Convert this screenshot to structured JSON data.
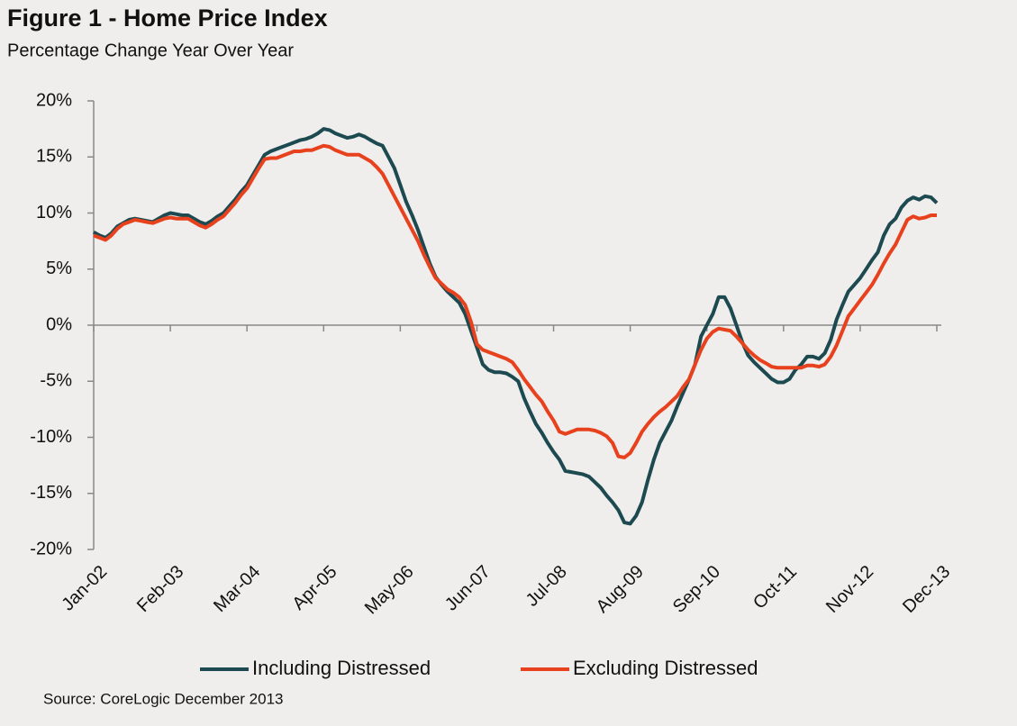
{
  "chart_data": {
    "type": "line",
    "title": "Figure 1 - Home Price Index",
    "subtitle": "Percentage Change Year Over Year",
    "source": "Source: CoreLogic  December 2013",
    "categories": [
      "Jan-02",
      null,
      null,
      null,
      null,
      null,
      null,
      null,
      null,
      null,
      null,
      null,
      null,
      "Feb-03",
      null,
      null,
      null,
      null,
      null,
      null,
      null,
      null,
      null,
      null,
      null,
      null,
      "Mar-04",
      null,
      null,
      null,
      null,
      null,
      null,
      null,
      null,
      null,
      null,
      null,
      null,
      "Apr-05",
      null,
      null,
      null,
      null,
      null,
      null,
      null,
      null,
      null,
      null,
      null,
      null,
      "May-06",
      null,
      null,
      null,
      null,
      null,
      null,
      null,
      null,
      null,
      null,
      null,
      null,
      "Jun-07",
      null,
      null,
      null,
      null,
      null,
      null,
      null,
      null,
      null,
      null,
      null,
      null,
      "Jul-08",
      null,
      null,
      null,
      null,
      null,
      null,
      null,
      null,
      null,
      null,
      null,
      null,
      "Aug-09",
      null,
      null,
      null,
      null,
      null,
      null,
      null,
      null,
      null,
      null,
      null,
      null,
      "Sep-10",
      null,
      null,
      null,
      null,
      null,
      null,
      null,
      null,
      null,
      null,
      null,
      null,
      "Oct-11",
      null,
      null,
      null,
      null,
      null,
      null,
      null,
      null,
      null,
      null,
      null,
      null,
      "Nov-12",
      null,
      null,
      null,
      null,
      null,
      null,
      null,
      null,
      null,
      null,
      null,
      null,
      "Dec-13"
    ],
    "series": [
      {
        "name": "Including Distressed",
        "color": "#1d4a50",
        "values": [
          8.3,
          8.0,
          7.8,
          8.2,
          8.8,
          9.1,
          9.4,
          9.5,
          9.4,
          9.3,
          9.2,
          9.5,
          9.8,
          10.0,
          9.9,
          9.8,
          9.8,
          9.5,
          9.2,
          9.0,
          9.3,
          9.7,
          10.0,
          10.6,
          11.2,
          11.9,
          12.5,
          13.4,
          14.3,
          15.2,
          15.5,
          15.7,
          15.9,
          16.1,
          16.3,
          16.5,
          16.6,
          16.8,
          17.1,
          17.5,
          17.4,
          17.1,
          16.9,
          16.7,
          16.8,
          17.0,
          16.8,
          16.5,
          16.2,
          16.0,
          15.0,
          14.0,
          12.5,
          11.0,
          9.8,
          8.5,
          7.0,
          5.5,
          4.3,
          3.6,
          3.0,
          2.5,
          2.0,
          1.0,
          -0.5,
          -2.0,
          -3.5,
          -4.0,
          -4.2,
          -4.2,
          -4.3,
          -4.6,
          -5.0,
          -6.5,
          -7.7,
          -8.8,
          -9.6,
          -10.5,
          -11.3,
          -12.0,
          -13.0,
          -13.1,
          -13.2,
          -13.3,
          -13.5,
          -14.0,
          -14.5,
          -15.2,
          -15.8,
          -16.5,
          -17.6,
          -17.7,
          -17.0,
          -15.8,
          -13.8,
          -12.0,
          -10.5,
          -9.5,
          -8.5,
          -7.2,
          -6.0,
          -4.8,
          -3.5,
          -1.0,
          0.0,
          1.0,
          2.5,
          2.5,
          1.5,
          0.0,
          -1.5,
          -2.7,
          -3.3,
          -3.8,
          -4.3,
          -4.8,
          -5.1,
          -5.1,
          -4.8,
          -4.0,
          -3.5,
          -2.8,
          -2.8,
          -3.0,
          -2.5,
          -1.3,
          0.5,
          1.8,
          3.0,
          3.6,
          4.2,
          5.0,
          5.8,
          6.5,
          8.0,
          9.0,
          9.5,
          10.5,
          11.1,
          11.4,
          11.2,
          11.5,
          11.4,
          10.9
        ]
      },
      {
        "name": "Excluding Distressed",
        "color": "#e8411d",
        "values": [
          8.0,
          7.8,
          7.6,
          8.0,
          8.6,
          9.0,
          9.2,
          9.4,
          9.3,
          9.2,
          9.1,
          9.3,
          9.5,
          9.6,
          9.5,
          9.5,
          9.5,
          9.2,
          8.9,
          8.7,
          9.0,
          9.4,
          9.7,
          10.3,
          10.9,
          11.6,
          12.2,
          13.1,
          14.0,
          14.8,
          14.9,
          14.9,
          15.1,
          15.3,
          15.5,
          15.5,
          15.6,
          15.6,
          15.8,
          16.0,
          15.9,
          15.6,
          15.4,
          15.2,
          15.2,
          15.2,
          14.9,
          14.6,
          14.1,
          13.5,
          12.5,
          11.5,
          10.5,
          9.5,
          8.5,
          7.5,
          6.3,
          5.2,
          4.2,
          3.7,
          3.2,
          2.9,
          2.5,
          1.8,
          0.3,
          -1.7,
          -2.2,
          -2.4,
          -2.6,
          -2.8,
          -3.0,
          -3.3,
          -4.0,
          -4.8,
          -5.5,
          -6.2,
          -6.8,
          -7.7,
          -8.5,
          -9.5,
          -9.7,
          -9.5,
          -9.3,
          -9.3,
          -9.3,
          -9.4,
          -9.6,
          -9.9,
          -10.5,
          -11.7,
          -11.8,
          -11.4,
          -10.5,
          -9.5,
          -8.8,
          -8.2,
          -7.7,
          -7.3,
          -6.8,
          -6.3,
          -5.5,
          -4.8,
          -3.5,
          -2.2,
          -1.2,
          -0.6,
          -0.3,
          -0.4,
          -0.5,
          -1.0,
          -1.6,
          -2.2,
          -2.7,
          -3.1,
          -3.4,
          -3.7,
          -3.8,
          -3.8,
          -3.8,
          -3.8,
          -3.8,
          -3.6,
          -3.6,
          -3.7,
          -3.5,
          -2.8,
          -1.8,
          -0.5,
          0.8,
          1.5,
          2.2,
          2.9,
          3.6,
          4.5,
          5.5,
          6.4,
          7.2,
          8.3,
          9.4,
          9.7,
          9.5,
          9.6,
          9.8,
          9.8
        ]
      }
    ],
    "ylim": [
      -20,
      20
    ],
    "yticks": [
      {
        "value": -20,
        "label": "-20%"
      },
      {
        "value": -15,
        "label": "-15%"
      },
      {
        "value": -10,
        "label": "-10%"
      },
      {
        "value": -5,
        "label": "-5%"
      },
      {
        "value": 0,
        "label": "0%"
      },
      {
        "value": 5,
        "label": "5%"
      },
      {
        "value": 10,
        "label": "10%"
      },
      {
        "value": 15,
        "label": "15%"
      },
      {
        "value": 20,
        "label": "20%"
      }
    ],
    "grid": false,
    "legend": "bottom"
  }
}
